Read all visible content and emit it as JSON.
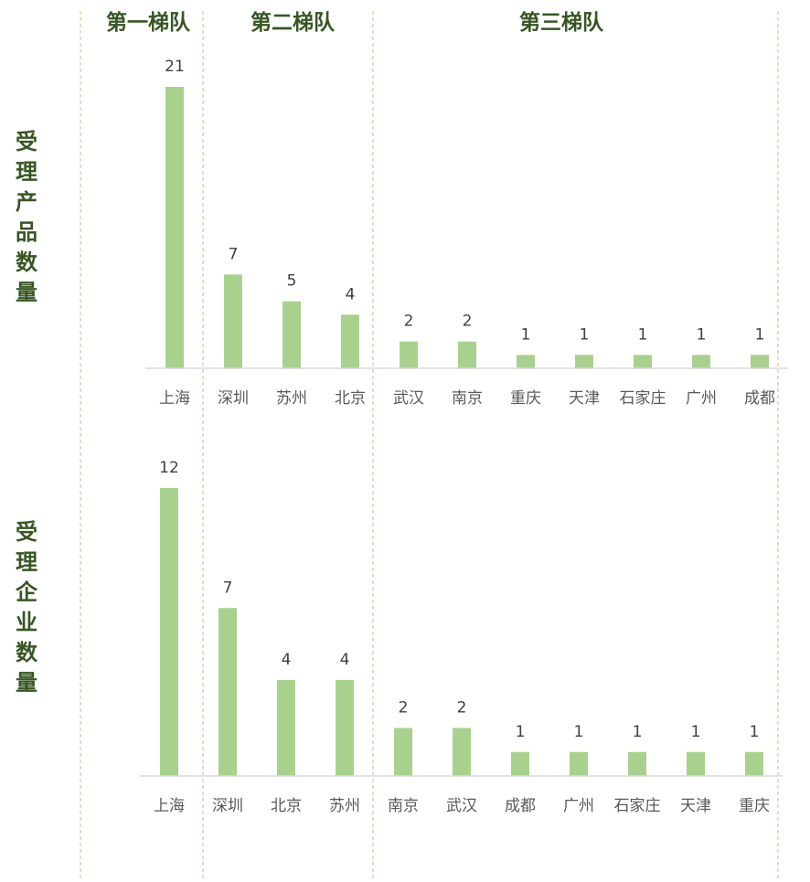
{
  "tiers": [
    {
      "label": "第一梯队"
    },
    {
      "label": "第二梯队"
    },
    {
      "label": "第三梯队"
    }
  ],
  "colors": {
    "bar": "#A9D18E",
    "title": "#375623",
    "divider": "#A9D18E",
    "axis": "#D9D9D9"
  },
  "chart_data": [
    {
      "type": "bar",
      "title": "受理产品数量",
      "categories": [
        "上海",
        "深圳",
        "苏州",
        "北京",
        "武汉",
        "南京",
        "重庆",
        "天津",
        "石家庄",
        "广州",
        "成都"
      ],
      "values": [
        21,
        7,
        5,
        4,
        2,
        2,
        1,
        1,
        1,
        1,
        1
      ],
      "ylim": [
        0,
        21
      ],
      "grid": false,
      "data_labels": true
    },
    {
      "type": "bar",
      "title": "受理企业数量",
      "categories": [
        "上海",
        "深圳",
        "北京",
        "苏州",
        "南京",
        "武汉",
        "成都",
        "广州",
        "石家庄",
        "天津",
        "重庆"
      ],
      "values": [
        12,
        7,
        4,
        4,
        2,
        2,
        1,
        1,
        1,
        1,
        1
      ],
      "ylim": [
        0,
        12
      ],
      "grid": false,
      "data_labels": true
    }
  ]
}
